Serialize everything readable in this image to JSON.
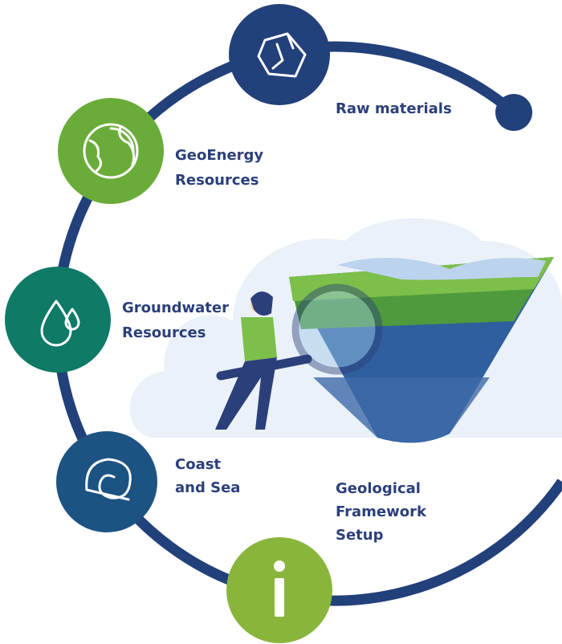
{
  "nodes": [
    {
      "label": [
        "Raw materials"
      ]
    },
    {
      "label": [
        "GeoEnergy",
        "Resources"
      ]
    },
    {
      "label": [
        "Groundwater",
        "Resources"
      ]
    },
    {
      "label": [
        "Coast",
        "and Sea"
      ]
    },
    {
      "label": [
        "Geological",
        "Framework",
        "Setup"
      ]
    }
  ]
}
